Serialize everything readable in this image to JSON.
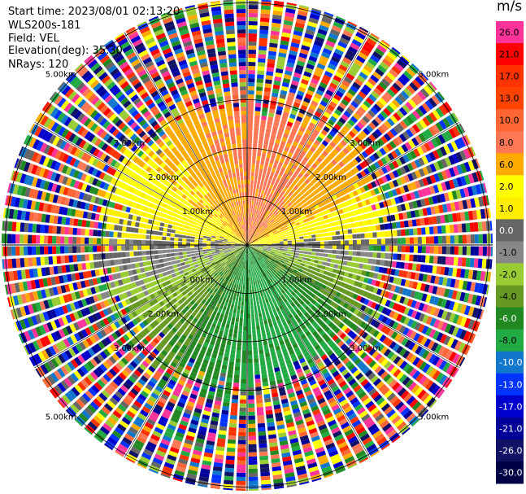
{
  "meta": {
    "start_time": "Start time: 2023/08/01 02:13:20",
    "instrument": "WLS200s-181",
    "field": "Field: VEL",
    "elevation": "Elevation(deg): 35.30",
    "nrays": "NRays: 120"
  },
  "chart_data": {
    "type": "heatmap",
    "subtype": "polar-ppi",
    "title": "",
    "field": "VEL",
    "nrays": 120,
    "range_rings_km": [
      1.0,
      2.0,
      3.0,
      5.0
    ],
    "range_ring_labels": [
      "1.00km",
      "2.00km",
      "3.00km",
      "5.00km"
    ],
    "colorbar": {
      "unit": "m/s",
      "ticks": [
        "26.0",
        "21.0",
        "17.0",
        "13.0",
        "10.0",
        "8.0",
        "6.0",
        "2.0",
        "1.0",
        "0.0",
        "-1.0",
        "-2.0",
        "-4.0",
        "-6.0",
        "-8.0",
        "-10.0",
        "-13.0",
        "-17.0",
        "-21.0",
        "-26.0",
        "-30.0"
      ],
      "colors": [
        "#ff3399",
        "#ff0000",
        "#ff3300",
        "#ff4400",
        "#ff6633",
        "#ff7755",
        "#ffaa00",
        "#ffff00",
        "#ffee00",
        "#666666",
        "#888888",
        "#99cc33",
        "#669922",
        "#228822",
        "#22aa44",
        "#1177cc",
        "#0033ff",
        "#0000cc",
        "#000099",
        "#111166",
        "#000044"
      ]
    },
    "sectors": [
      {
        "azimuth_range_deg": [
          300,
          60
        ],
        "velocity_range": [
          6,
          10
        ],
        "description_color": "#ff7755"
      },
      {
        "azimuth_range_deg": [
          240,
          300
        ],
        "velocity_range": [
          0,
          2
        ],
        "description_color": "#808080"
      },
      {
        "azimuth_range_deg": [
          60,
          100
        ],
        "velocity_range": [
          1,
          6
        ],
        "description_color": "#ffcc00"
      },
      {
        "azimuth_range_deg": [
          100,
          130
        ],
        "velocity_range": [
          -1,
          0
        ],
        "description_color": "#808080"
      },
      {
        "azimuth_range_deg": [
          130,
          240
        ],
        "velocity_range": [
          -8,
          -2
        ],
        "description_color": "#228822"
      },
      {
        "azimuth_range_deg": [
          160,
          200
        ],
        "velocity_range": [
          -10,
          -8
        ],
        "description_color": "#1177cc"
      }
    ]
  }
}
